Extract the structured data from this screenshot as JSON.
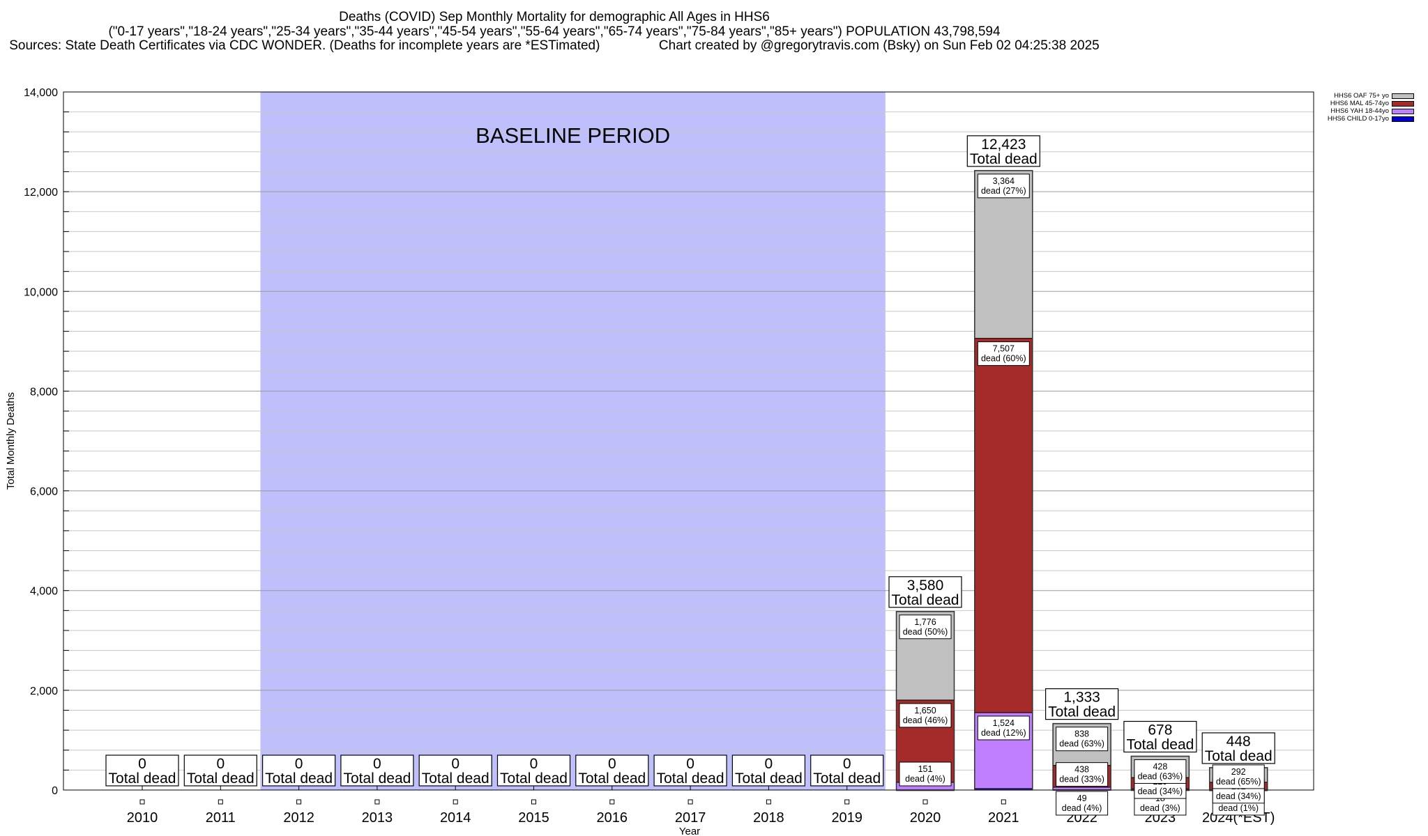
{
  "title": {
    "line1": "Deaths (COVID) Sep Monthly Mortality for demographic All Ages in HHS6",
    "line2": "(\"0-17 years\",\"18-24 years\",\"25-34 years\",\"35-44 years\",\"45-54 years\",\"55-64 years\",\"65-74 years\",\"75-84 years\",\"85+ years\") POPULATION 43,798,594",
    "line3_left": "Sources: State Death Certificates via CDC WONDER. (Deaths for incomplete years are *ESTimated)",
    "line3_right": "Chart created by @gregorytravis.com (Bsky) on Sun Feb 02 04:25:38 2025"
  },
  "legend": [
    {
      "label": "HHS6 OAF 75+ yo",
      "color": "#c0c0c0"
    },
    {
      "label": "HHS6 MAL 45-74yo",
      "color": "#a52a2a"
    },
    {
      "label": "HHS6 YAH 18-44yo",
      "color": "#bf7fff"
    },
    {
      "label": "HHS6 CHILD 0-17yo",
      "color": "#0000cd"
    }
  ],
  "chart_data": {
    "type": "bar",
    "stacked": true,
    "xlabel": "Year",
    "ylabel": "Total Monthly Deaths",
    "ylim": [
      0,
      14000
    ],
    "yticks": [
      0,
      2000,
      4000,
      6000,
      8000,
      10000,
      12000,
      14000
    ],
    "ytick_labels": [
      "0",
      "2,000",
      "4,000",
      "6,000",
      "8,000",
      "10,000",
      "12,000",
      "14,000"
    ],
    "grid": true,
    "legend_position": "top-right",
    "annotation": "BASELINE PERIOD",
    "baseline_range": [
      "2012",
      "2019"
    ],
    "categories": [
      "2010",
      "2011",
      "2012",
      "2013",
      "2014",
      "2015",
      "2016",
      "2017",
      "2018",
      "2019",
      "2020",
      "2021",
      "2022",
      "2023",
      "2024(*EST)"
    ],
    "totals": [
      0,
      0,
      0,
      0,
      0,
      0,
      0,
      0,
      0,
      0,
      3580,
      12423,
      1333,
      678,
      448
    ],
    "total_labels": [
      "0",
      "0",
      "0",
      "0",
      "0",
      "0",
      "0",
      "0",
      "0",
      "0",
      "3,580",
      "12,423",
      "1,333",
      "678",
      "448"
    ],
    "total_suffix": "Total dead",
    "series": [
      {
        "name": "HHS6 CHILD 0-17yo",
        "color": "#0000cd",
        "values": [
          0,
          0,
          0,
          0,
          0,
          0,
          0,
          0,
          0,
          0,
          3,
          28,
          7,
          3,
          1
        ],
        "labels": [
          "",
          "",
          "",
          "",
          "",
          "",
          "",
          "",
          "",
          "",
          "",
          "",
          "",
          "",
          ""
        ]
      },
      {
        "name": "HHS6 YAH 18-44yo",
        "color": "#bf7fff",
        "values": [
          0,
          0,
          0,
          0,
          0,
          0,
          0,
          0,
          0,
          0,
          151,
          1524,
          49,
          18,
          3
        ],
        "labels": [
          "",
          "",
          "",
          "",
          "",
          "",
          "",
          "",
          "",
          "",
          "151|dead (4%)",
          "1,524|dead (12%)",
          "49|dead (4%)",
          "18|dead (3%)",
          "3|dead (1%)"
        ]
      },
      {
        "name": "HHS6 MAL 45-74yo",
        "color": "#a52a2a",
        "values": [
          0,
          0,
          0,
          0,
          0,
          0,
          0,
          0,
          0,
          0,
          1650,
          7507,
          438,
          229,
          152
        ],
        "labels": [
          "",
          "",
          "",
          "",
          "",
          "",
          "",
          "",
          "",
          "",
          "1,650|dead (46%)",
          "7,507|dead (60%)",
          "438|dead (33%)",
          "229|dead (34%)",
          "152|dead (34%)"
        ]
      },
      {
        "name": "HHS6 OAF 75+ yo",
        "color": "#c0c0c0",
        "values": [
          0,
          0,
          0,
          0,
          0,
          0,
          0,
          0,
          0,
          0,
          1776,
          3364,
          838,
          428,
          292
        ],
        "labels": [
          "",
          "",
          "",
          "",
          "",
          "",
          "",
          "",
          "",
          "",
          "1,776|dead (50%)",
          "3,364|dead (27%)",
          "838|dead (63%)",
          "428|dead (63%)",
          "292|dead (65%)"
        ]
      }
    ]
  }
}
